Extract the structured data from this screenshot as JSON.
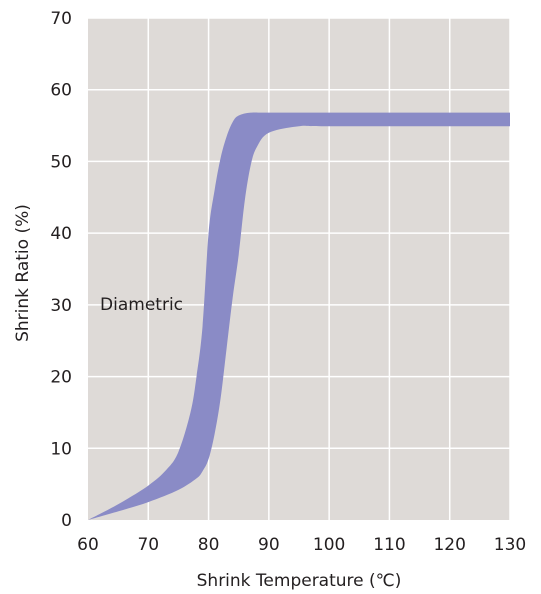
{
  "chart_data": {
    "type": "area",
    "title": "",
    "xlabel": "Shrink Temperature (℃)",
    "ylabel": "Shrink Ratio (%)",
    "xlim": [
      60,
      130
    ],
    "ylim": [
      0,
      70
    ],
    "x_ticks": [
      60,
      70,
      80,
      90,
      100,
      110,
      120,
      130
    ],
    "y_ticks": [
      0,
      10,
      20,
      30,
      40,
      50,
      60,
      70
    ],
    "x_tick_labels": [
      "60",
      "70",
      "80",
      "90",
      "100",
      "110",
      "120",
      "130"
    ],
    "y_tick_labels": [
      "0",
      "10",
      "20",
      "30",
      "40",
      "50",
      "60",
      "70"
    ],
    "grid": true,
    "legend": "none",
    "annotations": [
      {
        "text": "Diametric",
        "x": 62,
        "y": 29
      }
    ],
    "series": [
      {
        "band_upper": {
          "x": [
            60,
            65,
            70,
            73,
            75,
            77,
            78,
            79,
            80,
            81,
            82,
            83,
            84,
            85,
            87,
            90,
            100,
            130
          ],
          "y": [
            0,
            2.2,
            4.8,
            7,
            9.5,
            15,
            20,
            27,
            40,
            46,
            50.5,
            53.5,
            55.5,
            56.4,
            56.8,
            56.8,
            56.8,
            56.8
          ]
        },
        "band_lower": {
          "x": [
            60,
            65,
            70,
            75,
            78,
            79,
            80,
            81,
            82,
            83,
            84,
            85,
            86,
            87,
            88,
            90,
            95,
            100,
            130
          ],
          "y": [
            0,
            1.2,
            2.5,
            4.2,
            5.8,
            6.8,
            8.5,
            12,
            17,
            24,
            31,
            37,
            44.5,
            49.5,
            52,
            54,
            54.9,
            54.9,
            54.9
          ]
        }
      }
    ]
  },
  "colors": {
    "plot_background": "#dedad7",
    "grid": "#ffffff",
    "band_fill": "#8a8bc6",
    "text": "#231f20"
  }
}
